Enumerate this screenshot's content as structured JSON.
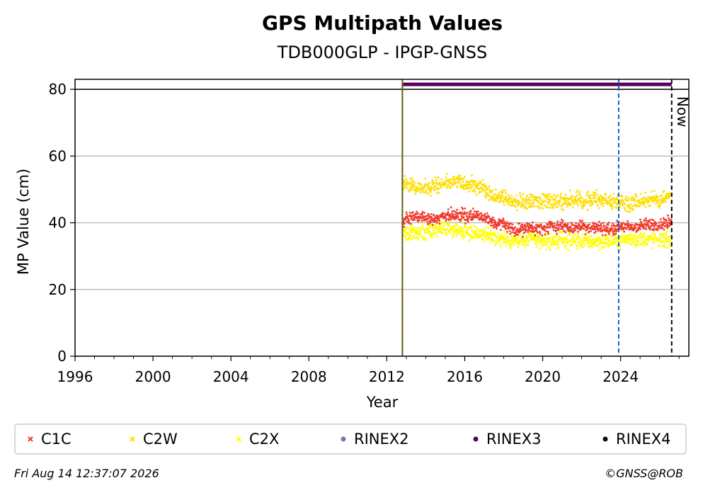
{
  "chart_data": {
    "type": "scatter",
    "title": "GPS Multipath Values",
    "subtitle": "TDB000GLP - IPGP-GNSS",
    "xlabel": "Year",
    "ylabel": "MP Value (cm)",
    "xlim": [
      1996,
      2027.5
    ],
    "ylim": [
      0,
      83
    ],
    "x_ticks": [
      "1996",
      "2000",
      "2004",
      "2008",
      "2012",
      "2016",
      "2020",
      "2024"
    ],
    "y_ticks": [
      "0",
      "20",
      "40",
      "60",
      "80"
    ],
    "grid": "horizontal",
    "legend_position": "bottom",
    "series": [
      {
        "name": "C1C",
        "color": "#f03a2c",
        "marker": "x",
        "x": [
          2012.8,
          2013.0,
          2013.5,
          2014.0,
          2014.5,
          2015.0,
          2015.5,
          2016.0,
          2016.5,
          2017.0,
          2017.5,
          2018.0,
          2018.5,
          2019.0,
          2019.5,
          2020.0,
          2020.5,
          2021.0,
          2021.5,
          2022.0,
          2022.5,
          2023.0,
          2023.5,
          2024.0,
          2024.5,
          2025.0,
          2025.5,
          2026.0,
          2026.5
        ],
        "y": [
          40,
          41,
          42,
          41.5,
          41,
          42,
          42.5,
          42,
          42.5,
          41.5,
          40,
          39.5,
          38,
          38,
          38.5,
          38,
          39,
          39,
          38.5,
          39,
          38.5,
          38.5,
          38,
          39,
          38.5,
          39,
          39.5,
          39.5,
          40
        ]
      },
      {
        "name": "C2W",
        "color": "#ffde00",
        "marker": "x",
        "x": [
          2012.8,
          2013.0,
          2013.5,
          2014.0,
          2014.5,
          2015.0,
          2015.5,
          2016.0,
          2016.5,
          2017.0,
          2017.5,
          2018.0,
          2018.5,
          2019.0,
          2019.5,
          2020.0,
          2020.5,
          2021.0,
          2021.5,
          2022.0,
          2022.5,
          2023.0,
          2023.5,
          2024.0,
          2024.5,
          2025.0,
          2025.5,
          2026.0,
          2026.5
        ],
        "y": [
          52,
          51.5,
          51,
          50.5,
          51,
          52,
          52.5,
          51.5,
          51,
          50.5,
          48,
          47.5,
          46,
          46,
          46.5,
          46.5,
          47,
          46.5,
          47,
          46.5,
          47,
          47,
          46,
          46.5,
          46,
          46.5,
          47,
          47,
          48
        ]
      },
      {
        "name": "C2X",
        "color": "#ffff00",
        "marker": "x",
        "x": [
          2012.8,
          2013.0,
          2013.5,
          2014.0,
          2014.5,
          2015.0,
          2015.5,
          2016.0,
          2016.5,
          2017.0,
          2017.5,
          2018.0,
          2018.5,
          2019.0,
          2019.5,
          2020.0,
          2020.5,
          2021.0,
          2021.5,
          2022.0,
          2022.5,
          2023.0,
          2023.5,
          2024.0,
          2024.5,
          2025.0,
          2025.5,
          2026.0,
          2026.5
        ],
        "y": [
          38,
          37,
          37.5,
          37,
          38,
          38.5,
          38,
          37.5,
          37,
          36.5,
          35.5,
          35,
          34.5,
          34.5,
          35,
          34.5,
          34.5,
          35,
          34.5,
          34.5,
          34.5,
          34.5,
          34.5,
          35,
          35,
          35,
          35,
          35,
          35
        ]
      },
      {
        "name": "RINEX2",
        "color": "#8070b8",
        "marker": "dot",
        "x": [],
        "y": []
      },
      {
        "name": "RINEX3",
        "color": "#5a0060",
        "marker": "dot",
        "x": [
          2012.8,
          2027.0
        ],
        "y": [
          81.5,
          81.5
        ]
      },
      {
        "name": "RINEX4",
        "color": "#1a0020",
        "marker": "dot",
        "x": [],
        "y": []
      }
    ],
    "vertical_lines": [
      {
        "x": 2012.8,
        "color": "#1a8a1a",
        "style": "solid"
      },
      {
        "x": 2012.8,
        "color": "#e02020",
        "style": "dotted"
      },
      {
        "x": 2023.9,
        "color": "#1060c0",
        "style": "dashed"
      },
      {
        "x": 2026.62,
        "color": "#000000",
        "style": "dashed",
        "label": "Now"
      }
    ],
    "horizontal_lines": [
      {
        "y": 80,
        "color": "#000000",
        "style": "solid"
      }
    ]
  },
  "footer": {
    "timestamp": "Fri Aug 14 12:37:07 2026",
    "credit": "©GNSS@ROB"
  }
}
